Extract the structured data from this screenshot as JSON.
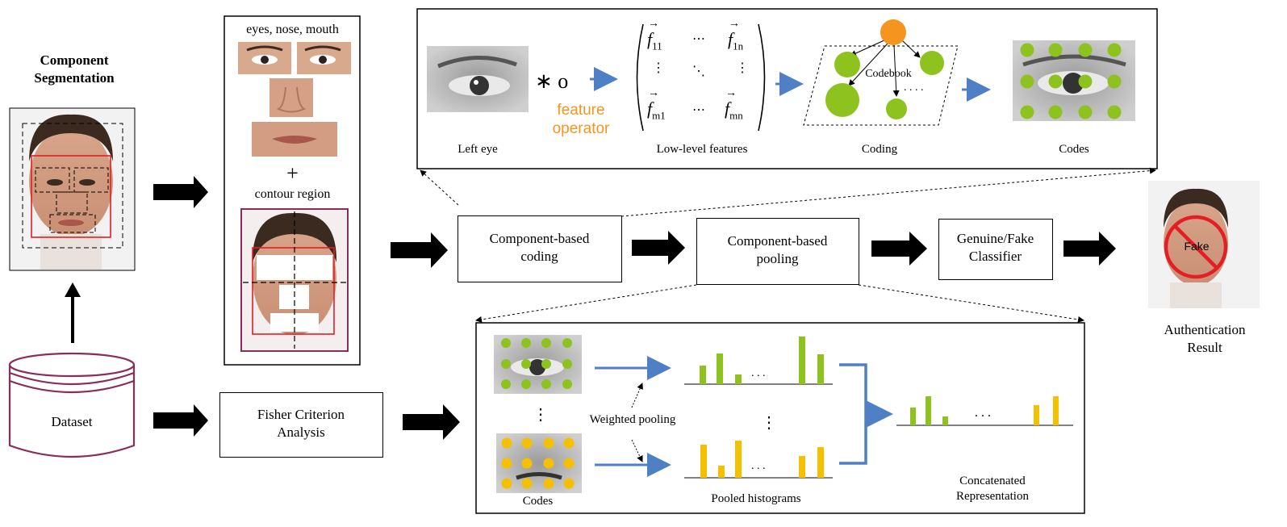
{
  "segmentation": {
    "title_line1": "Component",
    "title_line2": "Segmentation"
  },
  "components": {
    "top_label": "eyes, nose, mouth",
    "plus": "+",
    "contour_label": "contour region"
  },
  "dataset": {
    "label": "Dataset"
  },
  "fisher": {
    "line1": "Fisher Criterion",
    "line2": "Analysis"
  },
  "coding_detail": {
    "operator_symbol": "∗ o",
    "feature_label_line1": "feature",
    "feature_label_line2": "operator",
    "left_eye_label": "Left eye",
    "low_level_label": "Low-level features",
    "matrix_f11_sub": "11",
    "matrix_f1n_sub": "1n",
    "matrix_fm1_sub": "m1",
    "matrix_fmn_sub": "mn",
    "codebook_label": "Codebook",
    "coding_label": "Coding",
    "codes_label": "Codes"
  },
  "pipeline": {
    "coding_line1": "Component-based",
    "coding_line2": "coding",
    "pooling_line1": "Component-based",
    "pooling_line2": "pooling",
    "classifier_line1": "Genuine/Fake",
    "classifier_line2": "Classifier"
  },
  "result": {
    "fake_label": "Fake",
    "line1": "Authentication",
    "line2": "Result"
  },
  "pooling_detail": {
    "codes_label": "Codes",
    "weighted_label": "Weighted pooling",
    "pooled_label": "Pooled histograms",
    "concat_line1": "Concatenated",
    "concat_line2": "Representation"
  },
  "colors": {
    "green": "#8dc21f",
    "yellow": "#f5c000",
    "orange": "#f5941f",
    "arrow_blue": "#4f7fc4",
    "red": "#e31e24",
    "dataset": "#8b2d5a"
  }
}
